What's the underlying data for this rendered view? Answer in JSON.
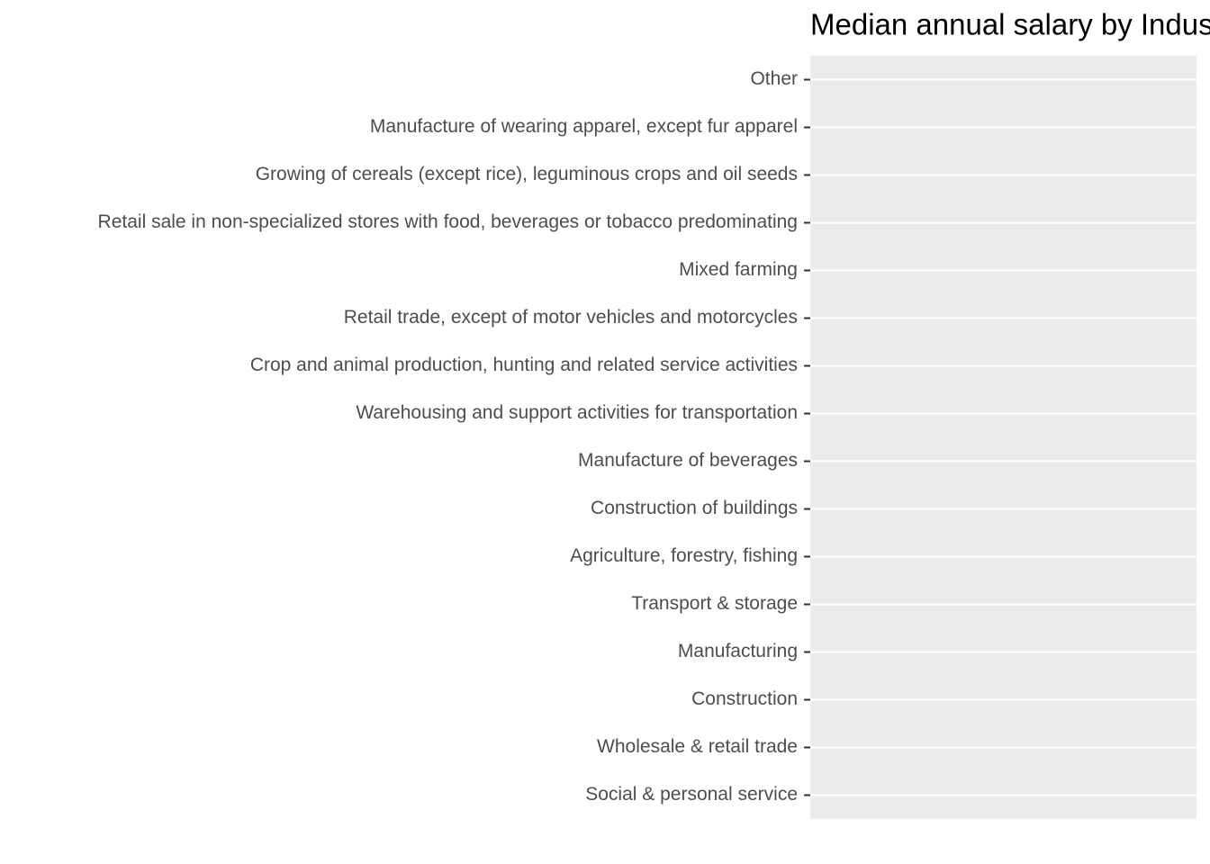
{
  "chart_data": {
    "type": "bar",
    "title": "Median annual salary by Indus",
    "categories": [
      "Other",
      "Manufacture of wearing apparel, except fur apparel",
      "Growing of cereals (except rice), leguminous crops and oil seeds",
      "Retail sale in non-specialized stores with food, beverages or tobacco predominating",
      "Mixed farming",
      "Retail trade, except of motor vehicles and motorcycles",
      "Crop and animal production, hunting and related service activities",
      "Warehousing and support activities for transportation",
      "Manufacture of beverages",
      "Construction of buildings",
      "Agriculture, forestry, fishing",
      "Transport & storage",
      "Manufacturing",
      "Construction",
      "Wholesale & retail trade",
      "Social & personal service"
    ],
    "grid": true
  }
}
